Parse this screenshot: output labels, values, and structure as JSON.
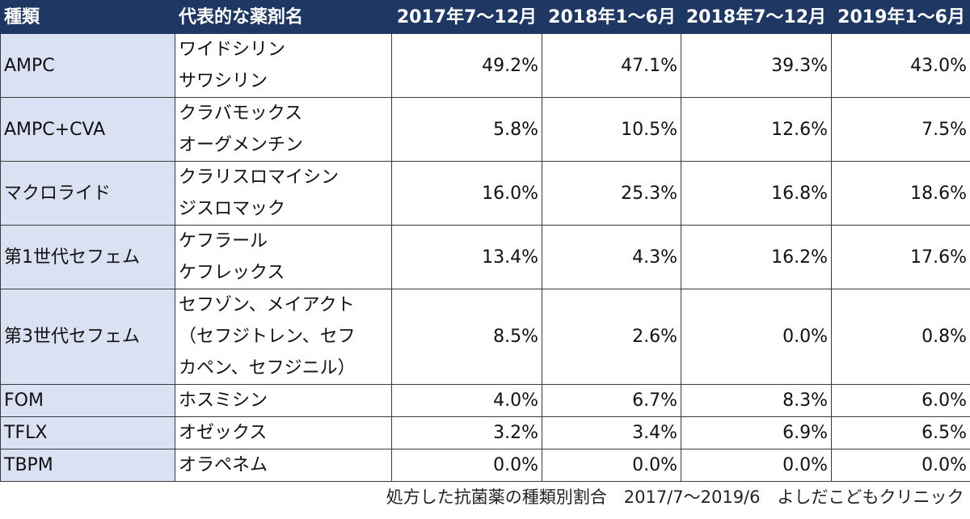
{
  "headers": [
    "種類",
    "代表的な薬剤名",
    "2017年7〜12月",
    "2018年1〜6月",
    "2018年7〜12月",
    "2019年1〜6月"
  ],
  "rows": [
    {
      "type": "AMPC",
      "drugs": [
        "ワイドシリン",
        "サワシリン"
      ],
      "values": [
        "49.2%",
        "47.1%",
        "39.3%",
        "43.0%"
      ]
    },
    {
      "type": "AMPC+CVA",
      "drugs": [
        "クラバモックス",
        "オーグメンチン"
      ],
      "values": [
        "5.8%",
        "10.5%",
        "12.6%",
        "7.5%"
      ]
    },
    {
      "type": "マクロライド",
      "drugs": [
        "クラリスロマイシン",
        "ジスロマック"
      ],
      "values": [
        "16.0%",
        "25.3%",
        "16.8%",
        "18.6%"
      ]
    },
    {
      "type": "第1世代セフェム",
      "drugs": [
        "ケフラール",
        "ケフレックス"
      ],
      "values": [
        "13.4%",
        "4.3%",
        "16.2%",
        "17.6%"
      ]
    },
    {
      "type": "第3世代セフェム",
      "drugs": [
        "セフゾン、メイアクト",
        "（セフジトレン、セフ",
        "カペン、セフジニル）"
      ],
      "values": [
        "8.5%",
        "2.6%",
        "0.0%",
        "0.8%"
      ]
    },
    {
      "type": "FOM",
      "drugs": [
        "ホスミシン"
      ],
      "values": [
        "4.0%",
        "6.7%",
        "8.3%",
        "6.0%"
      ]
    },
    {
      "type": "TFLX",
      "drugs": [
        "オゼックス"
      ],
      "values": [
        "3.2%",
        "3.4%",
        "6.9%",
        "6.5%"
      ]
    },
    {
      "type": "TBPM",
      "drugs": [
        "オラペネム"
      ],
      "values": [
        "0.0%",
        "0.0%",
        "0.0%",
        "0.0%"
      ]
    }
  ],
  "footer": "処方した抗菌薬の種類別割合　2017/7〜2019/6　よしだこどもクリニック"
}
